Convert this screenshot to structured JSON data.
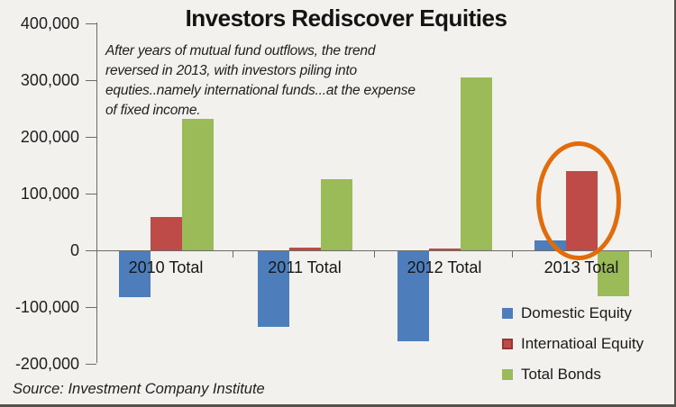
{
  "chart_data": {
    "type": "bar",
    "title": "Investors Rediscover Equities",
    "annotation_lines": [
      "After years of mutual fund outflows, the trend",
      "reversed in 2013, with investors piling into",
      "equties..namely international funds...at the expense",
      "of fixed income."
    ],
    "categories": [
      "2010 Total",
      "2011 Total",
      "2012 Total",
      "2013 Total"
    ],
    "series": [
      {
        "name": "Domestic Equity",
        "color": "#4d7ebb",
        "values": [
          -81000,
          -133000,
          -158000,
          18000
        ]
      },
      {
        "name": "Internatioal Equity",
        "color": "#be4b48",
        "marker_border": "#953634",
        "values": [
          58000,
          5000,
          3000,
          140000
        ]
      },
      {
        "name": "Total Bonds",
        "color": "#9bbb59",
        "values": [
          232000,
          125000,
          305000,
          -79000
        ]
      }
    ],
    "y_axis": {
      "ticks": [
        400000,
        300000,
        200000,
        100000,
        0,
        -100000,
        -200000
      ],
      "tick_labels": [
        "400,000",
        "300,000",
        "200,000",
        "100,000",
        "0",
        "-100,000",
        "-200,000"
      ],
      "ylim": [
        -200000,
        400000
      ],
      "grid": false
    },
    "legend_position": "bottom-right",
    "highlight": {
      "shape": "ellipse",
      "color": "#e06c0c",
      "target": "2013 Total Internatioal Equity bar"
    },
    "source": "Source: Investment Company Institute"
  }
}
